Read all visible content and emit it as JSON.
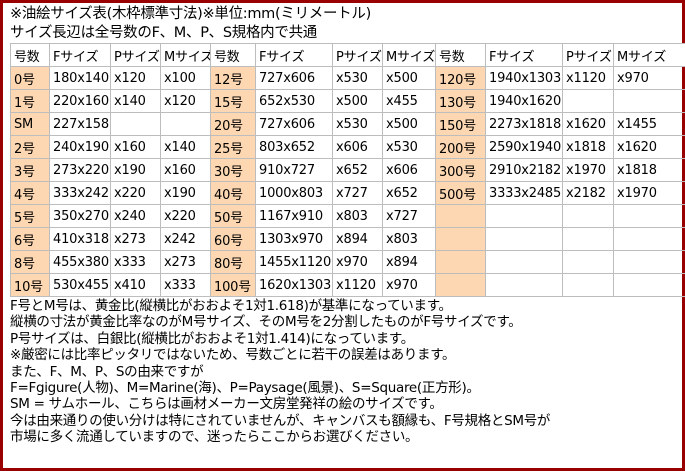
{
  "title_lines": [
    "※油絵サイズ表(木枠標準寸法)※単位:mm(ミリメートル)",
    "サイズ長辺は全号数のF、M、P、S規格内で共通"
  ],
  "table": {
    "headers": [
      "号数",
      "Fサイズ",
      "Pサイズ",
      "Mサイズ",
      "号数",
      "Fサイズ",
      "Pサイズ",
      "Mサイズ",
      "号数",
      "Fサイズ",
      "Pサイズ",
      "Mサイズ"
    ],
    "rows": [
      [
        "0号",
        "180x140",
        "x120",
        "x100",
        "12号",
        "727x606",
        "x530",
        "x500",
        "120号",
        "1940x1303",
        "x1120",
        "x970"
      ],
      [
        "1号",
        "220x160",
        "x140",
        "x120",
        "15号",
        "652x530",
        "x500",
        "x455",
        "130号",
        "1940x1620",
        "",
        ""
      ],
      [
        "SM",
        "227x158",
        "",
        "",
        "20号",
        "727x606",
        "x530",
        "x500",
        "150号",
        "2273x1818",
        "x1620",
        "x1455"
      ],
      [
        "2号",
        "240x190",
        "x160",
        "x140",
        "25号",
        "803x652",
        "x606",
        "x530",
        "200号",
        "2590x1940",
        "x1818",
        "x1620"
      ],
      [
        "3号",
        "273x220",
        "x190",
        "x160",
        "30号",
        "910x727",
        "x652",
        "x606",
        "300号",
        "2910x2182",
        "x1970",
        "x1818"
      ],
      [
        "4号",
        "333x242",
        "x220",
        "x190",
        "40号",
        "1000x803",
        "x727",
        "x652",
        "500号",
        "3333x2485",
        "x2182",
        "x1970"
      ],
      [
        "5号",
        "350x270",
        "x240",
        "x220",
        "50号",
        "1167x910",
        "x803",
        "x727",
        "",
        "",
        "",
        ""
      ],
      [
        "6号",
        "410x318",
        "x273",
        "x242",
        "60号",
        "1303x970",
        "x894",
        "x803",
        "",
        "",
        "",
        ""
      ],
      [
        "8号",
        "455x380",
        "x333",
        "x273",
        "80号",
        "1455x1120",
        "x970",
        "x894",
        "",
        "",
        "",
        ""
      ],
      [
        "10号",
        "530x455",
        "x410",
        "x333",
        "100号",
        "1620x1303",
        "x1120",
        "x970",
        "",
        "",
        "",
        ""
      ]
    ]
  },
  "notes": [
    "F号とM号は、黄金比(縦横比がおおよそ1対1.618)が基準になっています。",
    "縦横の寸法が黄金比率なのがM号サイズ、そのM号を2分割したものがF号サイズです。",
    "P号サイズは、白銀比(縦横比がおおよそ1対1.414)になっています。",
    "※厳密には比率ピッタリではないため、号数ごとに若干の誤差はあります。",
    "また、F、M、P、Sの由来ですが",
    "F=Fgigure(人物)、M=Marine(海)、P=Paysage(風景)、S=Square(正方形)。",
    "SM = サムホール、こちらは画材メーカー文房堂発祥の絵のサイズです。",
    "今は由来通りの使い分けは特にされていませんが、キャンバスも額縁も、F号規格とSM号が",
    "市場に多く流通していますので、迷ったらここからお選びください。"
  ],
  "colors": {
    "frame_border": "#990000",
    "number_cell_bg": "#fcd7b1",
    "grid_line": "#bdbdbd"
  }
}
